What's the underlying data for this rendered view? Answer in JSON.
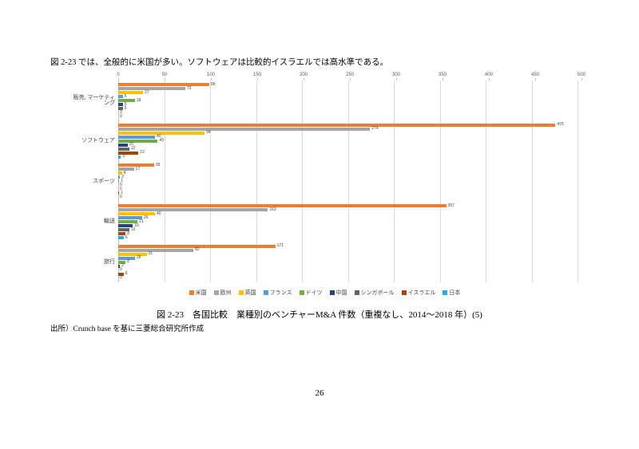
{
  "page": {
    "intro_text": "図 2-23 では、全般的に米国が多い。ソフトウェアは比較的イスラエルでは高水準である。",
    "caption": "図 2-23　各国比較　業種別のベンチャーM&A 件数（重複なし、2014～2018 年）(5)",
    "source": "出所）Crunch base を基に三菱総合研究所作成",
    "page_number": "26"
  },
  "chart_data": {
    "type": "bar",
    "orientation": "horizontal",
    "title": "各国比較　業種別のベンチャーM&A 件数（重複なし、2014～2018 年）(5)",
    "categories": [
      "販売, マーケティング",
      "ソフトウェア",
      "スポーツ",
      "輸送",
      "旅行"
    ],
    "series": [
      {
        "name": "米国",
        "color": "#ED7D31",
        "values": [
          99,
          476,
          39,
          357,
          171
        ]
      },
      {
        "name": "欧州",
        "color": "#A5A5A5",
        "values": [
          73,
          274,
          17,
          163,
          82
        ]
      },
      {
        "name": "英国",
        "color": "#FFC000",
        "values": [
          27,
          94,
          4,
          40,
          31
        ]
      },
      {
        "name": "フランス",
        "color": "#5B9BD5",
        "values": [
          5,
          40,
          2,
          26,
          18
        ]
      },
      {
        "name": "ドイツ",
        "color": "#70AD47",
        "values": [
          18,
          43,
          1,
          21,
          8
        ]
      },
      {
        "name": "中国",
        "color": "#264478",
        "values": [
          5,
          10,
          0,
          16,
          2
        ]
      },
      {
        "name": "シンガポール",
        "color": "#636363",
        "values": [
          5,
          12,
          0,
          12,
          0
        ]
      },
      {
        "name": "イスラエル",
        "color": "#9E480E",
        "values": [
          0,
          22,
          1,
          8,
          6
        ]
      },
      {
        "name": "日本",
        "color": "#29ABDE",
        "values": [
          0,
          3,
          0,
          6,
          0
        ]
      }
    ],
    "x_axis": {
      "min": 0,
      "max": 500,
      "tick_interval": 50,
      "ticks": [
        0,
        50,
        100,
        150,
        200,
        250,
        300,
        350,
        400,
        450,
        500
      ]
    },
    "grid": true,
    "legend_position": "bottom",
    "value_labels": true
  }
}
